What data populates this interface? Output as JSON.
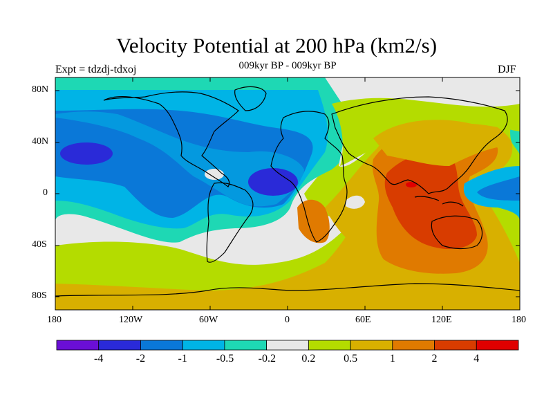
{
  "header": {
    "title": "Velocity Potential at 200 hPa (km2/s)",
    "subtitle": "009kyr BP - 009kyr BP",
    "left_label": "Expt = tdzdj-tdxoj",
    "right_label": "DJF"
  },
  "axes": {
    "lat_ticks": [
      "80N",
      "40N",
      "0",
      "40S",
      "80S"
    ],
    "lon_ticks": [
      "180",
      "120W",
      "60W",
      "0",
      "60E",
      "120E",
      "180"
    ]
  },
  "colorbar": {
    "colors": [
      "#6a0fd6",
      "#2a2ad8",
      "#0a78d8",
      "#00b4e6",
      "#1ed8b4",
      "#e8e8e8",
      "#b4dc00",
      "#d8b000",
      "#e07a00",
      "#d83c00",
      "#e00000"
    ],
    "labels": [
      "-4",
      "-2",
      "-1",
      "-0.5",
      "-0.2",
      "0.2",
      "0.5",
      "1",
      "2",
      "4"
    ]
  },
  "map": {
    "projection": "cylindrical-equidistant",
    "lon_range": [
      -180,
      180
    ],
    "lat_range": [
      -90,
      90
    ],
    "field": "velocity potential anomaly at 200 hPa"
  }
}
